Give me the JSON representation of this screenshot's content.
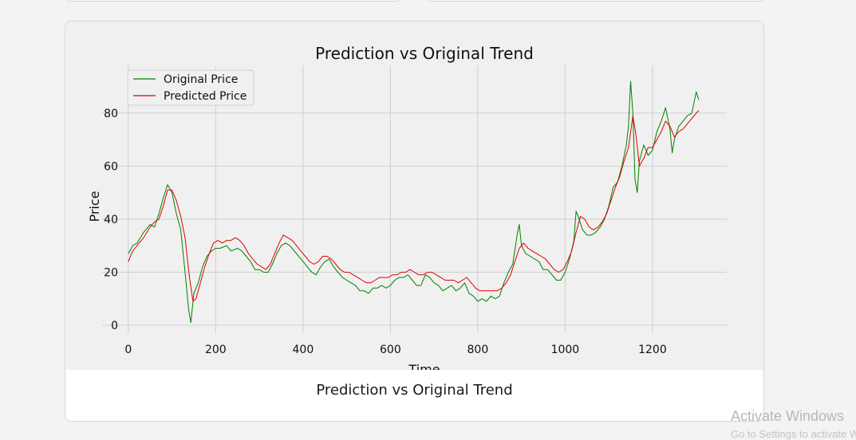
{
  "chart_data": {
    "type": "line",
    "title": "Prediction vs Original Trend",
    "xlabel": "Time",
    "ylabel": "Price",
    "xlim": [
      -60,
      1370
    ],
    "ylim": [
      -3,
      98
    ],
    "xticks": [
      0,
      200,
      400,
      600,
      800,
      1000,
      1200
    ],
    "yticks": [
      0,
      20,
      40,
      60,
      80
    ],
    "grid": true,
    "legend": "top-left",
    "series": [
      {
        "name": "Original Price",
        "color": "#008000",
        "points": [
          [
            0,
            27
          ],
          [
            10,
            30
          ],
          [
            20,
            31
          ],
          [
            35,
            35
          ],
          [
            50,
            38
          ],
          [
            60,
            37
          ],
          [
            70,
            42
          ],
          [
            80,
            48
          ],
          [
            90,
            53
          ],
          [
            100,
            50
          ],
          [
            110,
            42
          ],
          [
            120,
            36
          ],
          [
            130,
            20
          ],
          [
            138,
            6
          ],
          [
            143,
            1
          ],
          [
            150,
            12
          ],
          [
            160,
            16
          ],
          [
            170,
            22
          ],
          [
            180,
            26
          ],
          [
            190,
            28
          ],
          [
            200,
            29
          ],
          [
            210,
            29
          ],
          [
            225,
            30
          ],
          [
            235,
            28
          ],
          [
            250,
            29
          ],
          [
            260,
            28
          ],
          [
            270,
            26
          ],
          [
            280,
            24
          ],
          [
            290,
            21
          ],
          [
            300,
            21
          ],
          [
            310,
            20
          ],
          [
            320,
            20
          ],
          [
            330,
            23
          ],
          [
            340,
            27
          ],
          [
            350,
            30
          ],
          [
            360,
            31
          ],
          [
            370,
            30
          ],
          [
            380,
            28
          ],
          [
            390,
            26
          ],
          [
            400,
            24
          ],
          [
            410,
            22
          ],
          [
            420,
            20
          ],
          [
            430,
            19
          ],
          [
            440,
            22
          ],
          [
            450,
            24
          ],
          [
            460,
            25
          ],
          [
            470,
            22
          ],
          [
            480,
            20
          ],
          [
            490,
            18
          ],
          [
            500,
            17
          ],
          [
            510,
            16
          ],
          [
            520,
            15
          ],
          [
            530,
            13
          ],
          [
            540,
            13
          ],
          [
            550,
            12
          ],
          [
            560,
            14
          ],
          [
            570,
            14
          ],
          [
            580,
            15
          ],
          [
            590,
            14
          ],
          [
            600,
            15
          ],
          [
            610,
            17
          ],
          [
            620,
            18
          ],
          [
            630,
            18
          ],
          [
            640,
            19
          ],
          [
            650,
            17
          ],
          [
            660,
            15
          ],
          [
            670,
            15
          ],
          [
            680,
            19
          ],
          [
            690,
            18
          ],
          [
            700,
            16
          ],
          [
            710,
            15
          ],
          [
            720,
            13
          ],
          [
            730,
            14
          ],
          [
            740,
            15
          ],
          [
            750,
            13
          ],
          [
            760,
            14
          ],
          [
            770,
            16
          ],
          [
            780,
            12
          ],
          [
            790,
            11
          ],
          [
            800,
            9
          ],
          [
            810,
            10
          ],
          [
            820,
            9
          ],
          [
            830,
            11
          ],
          [
            840,
            10
          ],
          [
            850,
            11
          ],
          [
            860,
            16
          ],
          [
            870,
            20
          ],
          [
            880,
            23
          ],
          [
            890,
            34
          ],
          [
            895,
            38
          ],
          [
            900,
            30
          ],
          [
            910,
            27
          ],
          [
            920,
            26
          ],
          [
            930,
            25
          ],
          [
            940,
            24
          ],
          [
            950,
            21
          ],
          [
            960,
            21
          ],
          [
            970,
            19
          ],
          [
            980,
            17
          ],
          [
            990,
            17
          ],
          [
            1000,
            20
          ],
          [
            1010,
            25
          ],
          [
            1020,
            32
          ],
          [
            1025,
            43
          ],
          [
            1030,
            41
          ],
          [
            1040,
            36
          ],
          [
            1050,
            34
          ],
          [
            1060,
            34
          ],
          [
            1070,
            35
          ],
          [
            1080,
            37
          ],
          [
            1090,
            40
          ],
          [
            1100,
            45
          ],
          [
            1110,
            52
          ],
          [
            1120,
            54
          ],
          [
            1130,
            60
          ],
          [
            1140,
            68
          ],
          [
            1145,
            75
          ],
          [
            1150,
            92
          ],
          [
            1155,
            80
          ],
          [
            1160,
            55
          ],
          [
            1165,
            50
          ],
          [
            1170,
            62
          ],
          [
            1180,
            68
          ],
          [
            1190,
            64
          ],
          [
            1200,
            66
          ],
          [
            1210,
            73
          ],
          [
            1220,
            77
          ],
          [
            1230,
            82
          ],
          [
            1240,
            74
          ],
          [
            1245,
            65
          ],
          [
            1250,
            70
          ],
          [
            1260,
            75
          ],
          [
            1270,
            77
          ],
          [
            1280,
            79
          ],
          [
            1290,
            80
          ],
          [
            1300,
            88
          ],
          [
            1306,
            85
          ]
        ]
      },
      {
        "name": "Predicted Price",
        "color": "#e00000",
        "points": [
          [
            0,
            24
          ],
          [
            10,
            28
          ],
          [
            20,
            30
          ],
          [
            35,
            33
          ],
          [
            50,
            37
          ],
          [
            60,
            39
          ],
          [
            70,
            40
          ],
          [
            80,
            45
          ],
          [
            90,
            51
          ],
          [
            100,
            51
          ],
          [
            110,
            47
          ],
          [
            120,
            41
          ],
          [
            130,
            33
          ],
          [
            140,
            18
          ],
          [
            148,
            9
          ],
          [
            155,
            10
          ],
          [
            165,
            16
          ],
          [
            175,
            22
          ],
          [
            185,
            27
          ],
          [
            195,
            31
          ],
          [
            205,
            32
          ],
          [
            215,
            31
          ],
          [
            225,
            32
          ],
          [
            235,
            32
          ],
          [
            245,
            33
          ],
          [
            255,
            32
          ],
          [
            265,
            30
          ],
          [
            275,
            27
          ],
          [
            285,
            25
          ],
          [
            295,
            23
          ],
          [
            305,
            22
          ],
          [
            315,
            21
          ],
          [
            325,
            23
          ],
          [
            335,
            27
          ],
          [
            345,
            31
          ],
          [
            355,
            34
          ],
          [
            365,
            33
          ],
          [
            375,
            32
          ],
          [
            385,
            30
          ],
          [
            395,
            28
          ],
          [
            405,
            26
          ],
          [
            415,
            24
          ],
          [
            425,
            23
          ],
          [
            435,
            24
          ],
          [
            445,
            26
          ],
          [
            455,
            26
          ],
          [
            465,
            25
          ],
          [
            475,
            23
          ],
          [
            485,
            21
          ],
          [
            495,
            20
          ],
          [
            505,
            20
          ],
          [
            515,
            19
          ],
          [
            525,
            18
          ],
          [
            535,
            17
          ],
          [
            545,
            16
          ],
          [
            555,
            16
          ],
          [
            565,
            17
          ],
          [
            575,
            18
          ],
          [
            585,
            18
          ],
          [
            595,
            18
          ],
          [
            605,
            19
          ],
          [
            615,
            19
          ],
          [
            625,
            20
          ],
          [
            635,
            20
          ],
          [
            645,
            21
          ],
          [
            655,
            20
          ],
          [
            665,
            19
          ],
          [
            675,
            19
          ],
          [
            685,
            20
          ],
          [
            695,
            20
          ],
          [
            705,
            19
          ],
          [
            715,
            18
          ],
          [
            725,
            17
          ],
          [
            735,
            17
          ],
          [
            745,
            17
          ],
          [
            755,
            16
          ],
          [
            765,
            17
          ],
          [
            775,
            18
          ],
          [
            785,
            16
          ],
          [
            795,
            14
          ],
          [
            805,
            13
          ],
          [
            815,
            13
          ],
          [
            825,
            13
          ],
          [
            835,
            13
          ],
          [
            845,
            13
          ],
          [
            855,
            14
          ],
          [
            865,
            16
          ],
          [
            875,
            19
          ],
          [
            885,
            24
          ],
          [
            895,
            29
          ],
          [
            905,
            31
          ],
          [
            915,
            29
          ],
          [
            925,
            28
          ],
          [
            935,
            27
          ],
          [
            945,
            26
          ],
          [
            955,
            25
          ],
          [
            965,
            23
          ],
          [
            975,
            21
          ],
          [
            985,
            20
          ],
          [
            995,
            21
          ],
          [
            1005,
            24
          ],
          [
            1015,
            28
          ],
          [
            1025,
            35
          ],
          [
            1035,
            41
          ],
          [
            1045,
            40
          ],
          [
            1055,
            37
          ],
          [
            1065,
            36
          ],
          [
            1075,
            37
          ],
          [
            1085,
            39
          ],
          [
            1095,
            42
          ],
          [
            1105,
            47
          ],
          [
            1115,
            52
          ],
          [
            1125,
            56
          ],
          [
            1135,
            62
          ],
          [
            1145,
            67
          ],
          [
            1155,
            79
          ],
          [
            1162,
            72
          ],
          [
            1170,
            60
          ],
          [
            1180,
            63
          ],
          [
            1190,
            67
          ],
          [
            1200,
            67
          ],
          [
            1210,
            70
          ],
          [
            1220,
            73
          ],
          [
            1230,
            77
          ],
          [
            1240,
            75
          ],
          [
            1250,
            71
          ],
          [
            1260,
            73
          ],
          [
            1270,
            74
          ],
          [
            1280,
            76
          ],
          [
            1290,
            78
          ],
          [
            1300,
            80
          ],
          [
            1306,
            81
          ]
        ]
      }
    ]
  },
  "card": {
    "caption": "Prediction vs Original Trend"
  },
  "watermark": {
    "title": "Activate Windows",
    "subtitle": "Go to Settings to activate Windows."
  }
}
